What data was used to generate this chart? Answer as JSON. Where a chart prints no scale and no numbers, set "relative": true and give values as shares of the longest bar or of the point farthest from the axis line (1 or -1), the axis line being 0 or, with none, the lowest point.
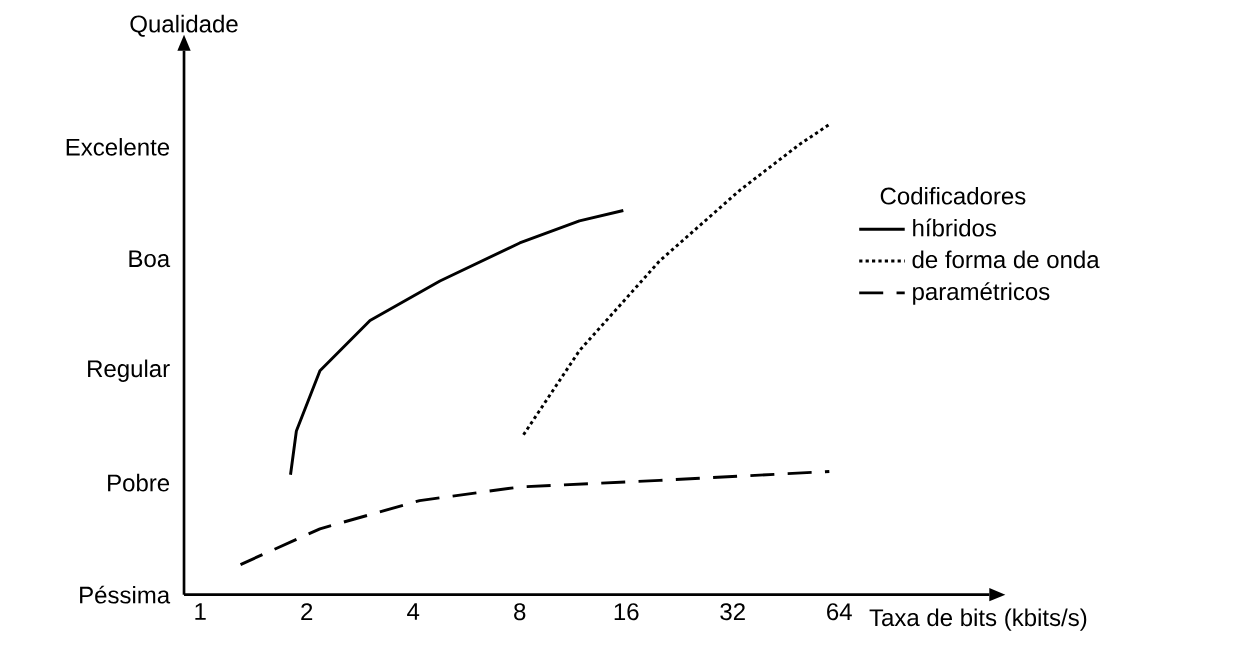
{
  "chart_data": {
    "type": "line",
    "xlabel": "Taxa de bits (kbits/s)",
    "ylabel": "Qualidade",
    "legend_title": "Codificadores",
    "legend": "right",
    "log": "x",
    "marker": "none",
    "relative": true,
    "xlim": [
      0.9,
      170
    ],
    "xticks": [
      1,
      2,
      4,
      8,
      16,
      32,
      64
    ],
    "annotations": [
      "Péssima",
      "Pobre",
      "Regular",
      "Boa",
      "Excelente"
    ],
    "series": [
      {
        "name": "híbridos",
        "color": "#000000",
        "line_style": "solid",
        "x": [
          1.8,
          1.87,
          2.18,
          3.02,
          4.76,
          8.0,
          11.8,
          15.7
        ],
        "values": [
          0.255,
          0.348,
          0.476,
          0.583,
          0.667,
          0.748,
          0.795,
          0.817
        ]
      },
      {
        "name": "de forma de onda",
        "color": "#000000",
        "line_style": "dotted",
        "x": [
          8.2,
          11.8,
          19.9,
          33.5,
          49.3,
          60
        ],
        "values": [
          0.34,
          0.519,
          0.71,
          0.86,
          0.957,
          1
        ]
      },
      {
        "name": "paramétricos",
        "color": "#000000",
        "line_style": "dashed",
        "x": [
          1.3,
          2.18,
          4.17,
          8.0,
          19.9,
          60
        ],
        "values": [
          0.064,
          0.14,
          0.2,
          0.229,
          0.243,
          0.262
        ]
      }
    ]
  }
}
